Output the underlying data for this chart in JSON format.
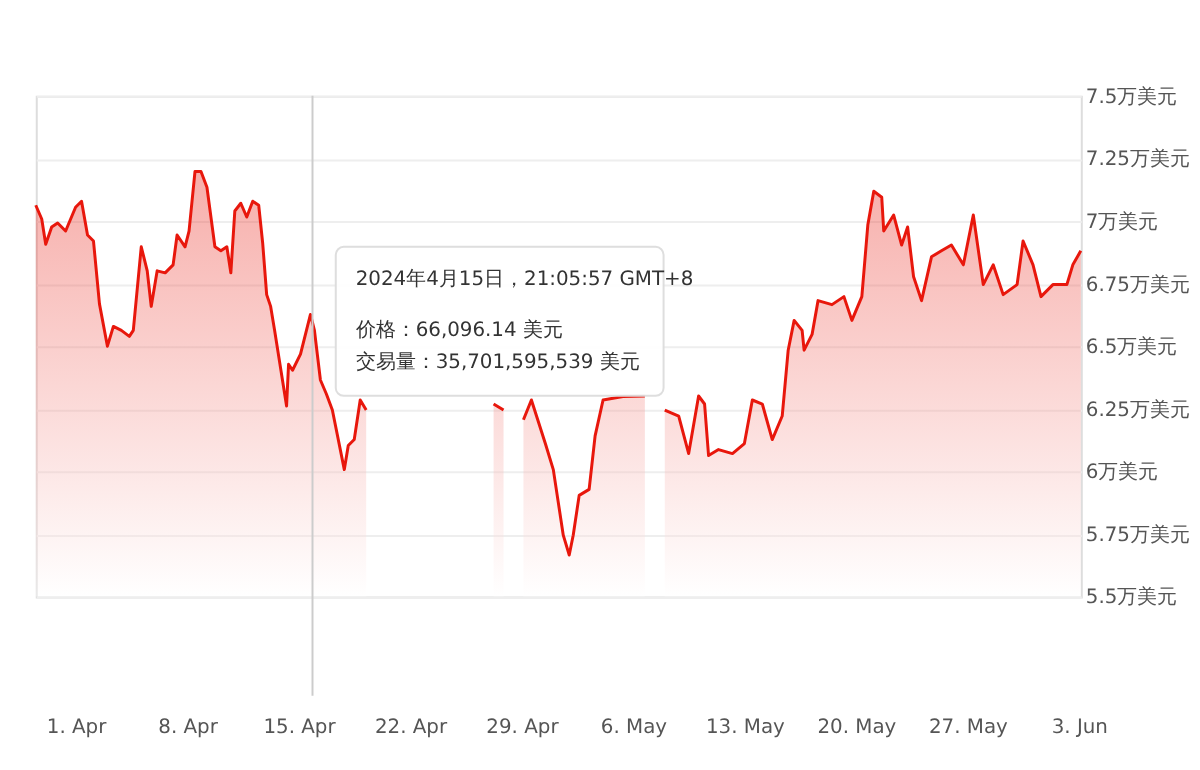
{
  "chart_data": {
    "type": "area",
    "x": [
      "2024-03-29T12:00",
      "2024-03-29T21:00",
      "2024-03-30T03:00",
      "2024-03-30T12:00",
      "2024-03-30T21:00",
      "2024-03-31T09:00",
      "2024-04-01T00:00",
      "2024-04-01T09:00",
      "2024-04-01T18:00",
      "2024-04-02T03:00",
      "2024-04-02T12:00",
      "2024-04-03T00:00",
      "2024-04-03T09:00",
      "2024-04-03T21:00",
      "2024-04-04T09:00",
      "2024-04-04T15:00",
      "2024-04-05T03:00",
      "2024-04-05T12:00",
      "2024-04-05T18:00",
      "2024-04-06T03:00",
      "2024-04-06T15:00",
      "2024-04-07T03:00",
      "2024-04-07T09:00",
      "2024-04-07T21:00",
      "2024-04-08T03:00",
      "2024-04-08T12:00",
      "2024-04-08T21:00",
      "2024-04-09T06:00",
      "2024-04-09T18:00",
      "2024-04-10T03:00",
      "2024-04-10T12:00",
      "2024-04-10T18:00",
      "2024-04-11T00:00",
      "2024-04-11T09:00",
      "2024-04-11T18:00",
      "2024-04-12T03:00",
      "2024-04-12T12:00",
      "2024-04-12T18:00",
      "2024-04-13T00:00",
      "2024-04-13T06:00",
      "2024-04-13T12:00",
      "2024-04-14T06:00",
      "2024-04-14T09:00",
      "2024-04-14T15:00",
      "2024-04-15T03:00",
      "2024-04-15T18:00",
      "2024-04-16T00:00",
      "2024-04-16T09:00",
      "2024-04-16T18:00",
      "2024-04-17T03:00",
      "2024-04-17T21:00",
      "2024-04-18T03:00",
      "2024-04-18T12:00",
      "2024-04-18T21:00",
      "2024-04-19T06:00",
      "2024-04-22T00:00",
      "2024-04-27T06:00",
      "2024-04-27T21:00",
      "2024-04-28T12:00",
      "2024-04-29T03:00",
      "2024-04-29T15:00",
      "2024-04-30T12:00",
      "2024-05-01T00:00",
      "2024-05-01T15:00",
      "2024-05-02T00:00",
      "2024-05-02T06:00",
      "2024-05-02T15:00",
      "2024-05-03T06:00",
      "2024-05-03T15:00",
      "2024-05-04T03:00",
      "2024-05-05T09:00",
      "2024-05-06T18:00",
      "2024-05-07T09:00",
      "2024-05-08T00:00",
      "2024-05-08T21:00",
      "2024-05-09T12:00",
      "2024-05-10T03:00",
      "2024-05-10T12:00",
      "2024-05-10T18:00",
      "2024-05-11T09:00",
      "2024-05-12T06:00",
      "2024-05-13T00:00",
      "2024-05-13T12:00",
      "2024-05-14T03:00",
      "2024-05-14T18:00",
      "2024-05-15T09:00",
      "2024-05-15T18:00",
      "2024-05-16T03:00",
      "2024-05-16T15:00",
      "2024-05-16T18:00",
      "2024-05-17T06:00",
      "2024-05-17T15:00",
      "2024-05-18T12:00",
      "2024-05-19T06:00",
      "2024-05-19T18:00",
      "2024-05-20T09:00",
      "2024-05-20T18:00",
      "2024-05-21T03:00",
      "2024-05-21T15:00",
      "2024-05-21T18:00",
      "2024-05-22T09:00",
      "2024-05-22T21:00",
      "2024-05-23T06:00",
      "2024-05-23T15:00",
      "2024-05-24T03:00",
      "2024-05-24T18:00",
      "2024-05-25T09:00",
      "2024-05-26T00:00",
      "2024-05-26T18:00",
      "2024-05-27T09:00",
      "2024-05-28T00:00",
      "2024-05-28T15:00",
      "2024-05-29T06:00",
      "2024-05-30T03:00",
      "2024-05-30T12:00",
      "2024-05-31T03:00",
      "2024-05-31T15:00",
      "2024-06-01T09:00",
      "2024-06-02T06:00",
      "2024-06-02T15:00",
      "2024-06-03T03:00"
    ],
    "series": [
      {
        "color": "#e8170c",
        "values": [
          7.063,
          7.008,
          6.907,
          6.976,
          6.992,
          6.96,
          7.055,
          7.079,
          6.944,
          6.92,
          6.669,
          6.5,
          6.579,
          6.563,
          6.539,
          6.563,
          6.897,
          6.801,
          6.659,
          6.801,
          6.793,
          6.825,
          6.944,
          6.897,
          6.96,
          7.198,
          7.198,
          7.135,
          6.897,
          6.881,
          6.897,
          6.793,
          7.04,
          7.071,
          7.016,
          7.079,
          7.063,
          6.912,
          6.706,
          6.659,
          6.563,
          6.261,
          6.428,
          6.404,
          6.468,
          6.627,
          6.563,
          6.365,
          6.309,
          6.245,
          6.007,
          6.103,
          6.127,
          6.285,
          6.245,
          null,
          6.269,
          6.245,
          null,
          6.206,
          6.285,
          6.111,
          6.007,
          5.745,
          5.666,
          5.745,
          5.904,
          5.928,
          6.142,
          6.285,
          6.299,
          6.301,
          null,
          6.245,
          6.221,
          6.071,
          6.301,
          6.269,
          6.063,
          6.087,
          6.071,
          6.111,
          6.285,
          6.269,
          6.127,
          6.221,
          6.484,
          6.603,
          6.563,
          6.484,
          6.547,
          6.682,
          6.666,
          6.698,
          6.603,
          6.698,
          6.984,
          7.119,
          7.095,
          6.96,
          7.024,
          6.904,
          6.976,
          6.777,
          6.682,
          6.857,
          6.881,
          6.904,
          6.825,
          7.024,
          6.746,
          6.825,
          6.706,
          6.746,
          6.92,
          6.825,
          6.698,
          6.746,
          6.746,
          6.825,
          6.881
        ]
      }
    ],
    "ylim": [
      5.5,
      7.5
    ],
    "yticks": [
      {
        "value": 5.5,
        "label": "5.5万美元"
      },
      {
        "value": 5.75,
        "label": "5.75万美元"
      },
      {
        "value": 6,
        "label": "6万美元"
      },
      {
        "value": 6.25,
        "label": "6.25万美元"
      },
      {
        "value": 6.5,
        "label": "6.5万美元"
      },
      {
        "value": 6.75,
        "label": "6.75万美元"
      },
      {
        "value": 7,
        "label": "7万美元"
      },
      {
        "value": 7.25,
        "label": "7.25万美元"
      },
      {
        "value": 7.5,
        "label": "7.5万美元"
      }
    ],
    "xlim": [
      "2024-03-29T12:00",
      "2024-06-03T03:00"
    ],
    "xticks": [
      {
        "value": "2024-04-01",
        "label": "1. Apr"
      },
      {
        "value": "2024-04-08",
        "label": "8. Apr"
      },
      {
        "value": "2024-04-15",
        "label": "15. Apr"
      },
      {
        "value": "2024-04-22",
        "label": "22. Apr"
      },
      {
        "value": "2024-04-29",
        "label": "29. Apr"
      },
      {
        "value": "2024-05-06",
        "label": "6. May"
      },
      {
        "value": "2024-05-13",
        "label": "13. May"
      },
      {
        "value": "2024-05-20",
        "label": "20. May"
      },
      {
        "value": "2024-05-27",
        "label": "27. May"
      },
      {
        "value": "2024-06-03",
        "label": "3. Jun"
      }
    ],
    "ref_lines": [
      {
        "axis": "x",
        "value": "2024-04-15T21:05",
        "color": "#cccccc"
      }
    ],
    "annotations": [
      "2024年4月15日，21:05:57 GMT+8",
      "价格：66,096.14 美元",
      "交易量：35,701,595,539 美元"
    ],
    "grid": "y"
  }
}
